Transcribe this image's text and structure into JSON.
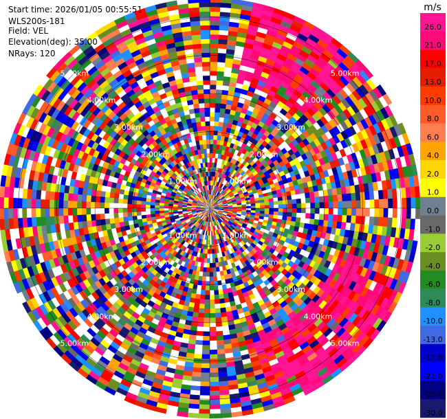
{
  "header": {
    "lines": [
      "Start time: 2026/01/05 00:55:51",
      "WLS200s-181",
      "Field: VEL",
      "Elevation(deg): 35.00",
      "NRays: 120"
    ]
  },
  "chart_data": {
    "type": "heatmap",
    "projection": "polar-ppi",
    "field": "VEL",
    "units": "m/s",
    "nrays": 120,
    "elevation_deg": 35.0,
    "range_rings_km": [
      1.0,
      2.0,
      3.0,
      4.0,
      5.0
    ],
    "range_ring_labels": [
      "1.00km",
      "2.00km",
      "3.00km",
      "4.00km",
      "5.00km"
    ],
    "max_range_km": 5.5,
    "colorbar": {
      "label": "m/s",
      "tick_labels": [
        "26.0",
        "21.0",
        "17.0",
        "13.0",
        "10.0",
        "8.0",
        "6.0",
        "4.0",
        "2.0",
        "1.0",
        "0.0",
        "-1.0",
        "-2.0",
        "-4.0",
        "-6.0",
        "-8.0",
        "-10.0",
        "-13.0",
        "-17.0",
        "-21.0",
        "-26.0",
        "-30.0"
      ],
      "colors": [
        "#ff1493",
        "#ff0a78",
        "#ff0000",
        "#e61e00",
        "#ff3c00",
        "#ff5a28",
        "#ff7f50",
        "#ffa500",
        "#ffd700",
        "#ffff00",
        "#708090",
        "#696969",
        "#9acd32",
        "#6b8e23",
        "#228b22",
        "#2e8b57",
        "#1e90ff",
        "#4169e1",
        "#0000cd",
        "#0000ff",
        "#000080",
        "#191970"
      ]
    },
    "velocity_pattern": "mostly noisy/random values at all ranges; coherent strong positive (red/pink) sector toward upper-right (approx. azimuth 10–45°) and lower-right (approx. azimuth 110–160°)"
  }
}
